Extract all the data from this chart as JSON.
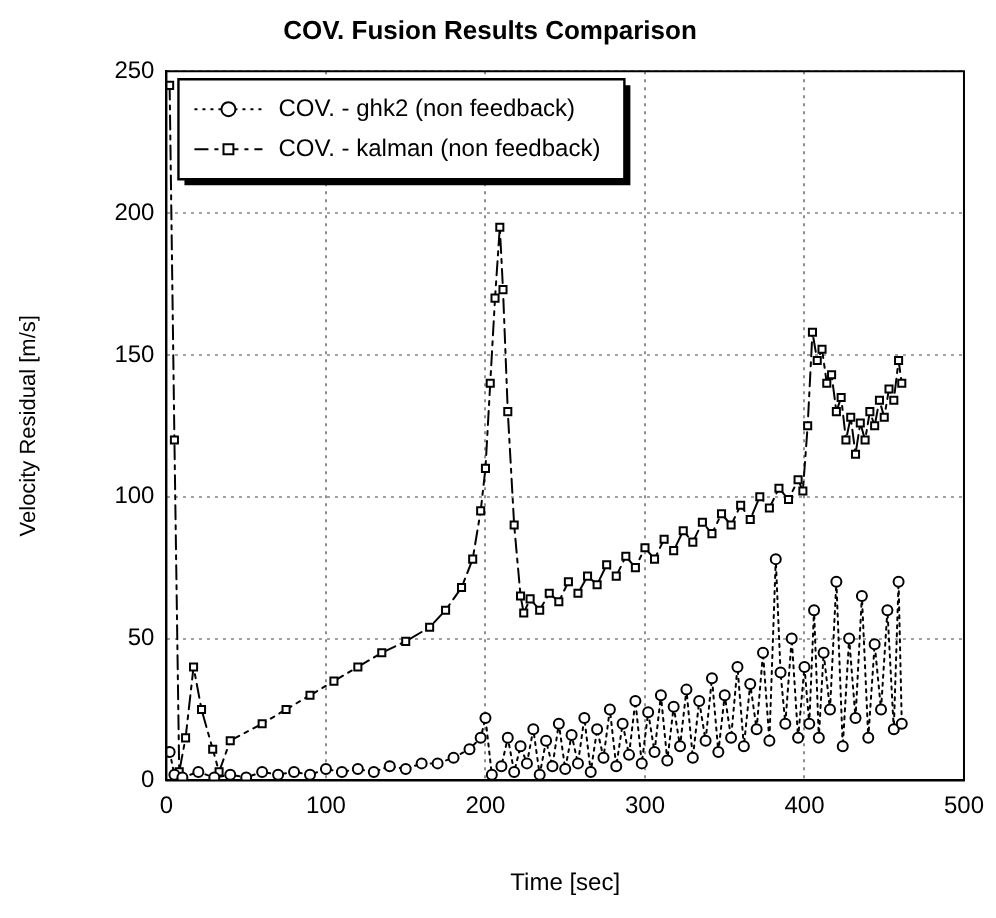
{
  "chart_data": {
    "type": "line",
    "title": "COV. Fusion Results Comparison",
    "xlabel": "Time [sec]",
    "ylabel": "Velocity Residual [m/s]",
    "xlim": [
      0,
      500
    ],
    "xticks": [
      0,
      100,
      200,
      300,
      400,
      500
    ],
    "ylim": [
      0,
      250
    ],
    "yticks": [
      0,
      50,
      100,
      150,
      200,
      250
    ],
    "grid": true,
    "legend": "top left",
    "series": [
      {
        "name": "COV. - ghk2 (non feedback)",
        "color": "#000000",
        "marker": "circle",
        "line_style": "dotted",
        "x": [
          2,
          5,
          10,
          20,
          30,
          40,
          50,
          60,
          70,
          80,
          90,
          100,
          110,
          120,
          130,
          140,
          150,
          160,
          170,
          180,
          190,
          197,
          200,
          204,
          210,
          214,
          218,
          222,
          226,
          230,
          234,
          238,
          242,
          246,
          250,
          254,
          258,
          262,
          266,
          270,
          274,
          278,
          282,
          286,
          290,
          294,
          298,
          302,
          306,
          310,
          314,
          318,
          322,
          326,
          330,
          334,
          338,
          342,
          346,
          350,
          354,
          358,
          362,
          366,
          370,
          374,
          378,
          382,
          385,
          388,
          392,
          396,
          400,
          403,
          406,
          409,
          412,
          416,
          420,
          424,
          428,
          432,
          436,
          440,
          444,
          448,
          452,
          456,
          459,
          461
        ],
        "values": [
          10,
          2,
          1,
          3,
          1,
          2,
          1,
          3,
          2,
          3,
          2,
          4,
          3,
          4,
          3,
          5,
          4,
          6,
          6,
          8,
          11,
          15,
          22,
          2,
          5,
          15,
          3,
          12,
          6,
          18,
          2,
          14,
          5,
          20,
          4,
          16,
          6,
          22,
          3,
          18,
          8,
          25,
          5,
          20,
          9,
          28,
          6,
          24,
          10,
          30,
          7,
          26,
          12,
          32,
          8,
          28,
          14,
          36,
          10,
          30,
          15,
          40,
          12,
          34,
          18,
          45,
          14,
          78,
          38,
          20,
          50,
          15,
          40,
          20,
          60,
          15,
          45,
          25,
          70,
          12,
          50,
          22,
          65,
          15,
          48,
          25,
          60,
          18,
          70,
          20
        ]
      },
      {
        "name": "COV. - kalman (non feedback)",
        "color": "#000000",
        "marker": "square",
        "line_style": "dashed",
        "x": [
          2,
          5,
          8,
          12,
          17,
          22,
          29,
          33,
          40,
          60,
          75,
          90,
          105,
          120,
          135,
          150,
          165,
          175,
          185,
          192,
          197,
          200,
          203,
          206,
          209,
          211,
          214,
          218,
          222,
          224,
          228,
          234,
          240,
          246,
          252,
          258,
          264,
          270,
          276,
          282,
          288,
          294,
          300,
          306,
          312,
          318,
          324,
          330,
          336,
          342,
          348,
          354,
          360,
          366,
          372,
          378,
          384,
          390,
          396,
          399,
          402,
          405,
          408,
          411,
          414,
          417,
          420,
          423,
          426,
          429,
          432,
          435,
          438,
          441,
          444,
          447,
          450,
          453,
          456,
          459,
          461
        ],
        "values": [
          245,
          120,
          3,
          15,
          40,
          25,
          11,
          3,
          14,
          20,
          25,
          30,
          35,
          40,
          45,
          49,
          54,
          60,
          68,
          78,
          95,
          110,
          140,
          170,
          195,
          173,
          130,
          90,
          65,
          59,
          64,
          60,
          66,
          63,
          70,
          66,
          72,
          69,
          76,
          72,
          79,
          75,
          82,
          78,
          85,
          81,
          88,
          84,
          91,
          87,
          94,
          90,
          97,
          92,
          100,
          96,
          103,
          99,
          106,
          102,
          125,
          158,
          148,
          152,
          140,
          143,
          130,
          135,
          120,
          128,
          115,
          126,
          120,
          130,
          125,
          134,
          128,
          138,
          134,
          148,
          140
        ]
      }
    ]
  }
}
